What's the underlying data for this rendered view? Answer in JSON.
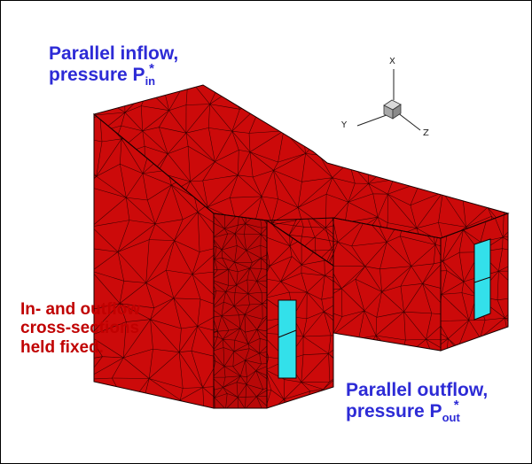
{
  "colors": {
    "mesh_fill": "#cc0a0a",
    "mesh_fill_dark": "#b80808",
    "mesh_line": "#3a0000",
    "port_fill": "#33e0ea",
    "label_blue": "#2d2bd6",
    "label_red": "#c00000"
  },
  "annotations": {
    "inflow": {
      "line1": "Parallel inflow,",
      "line2_prefix": "pressure P",
      "superscript": "*",
      "subscript": "in"
    },
    "outflow": {
      "line1": "Parallel outflow,",
      "line2_prefix": "pressure P",
      "superscript": "*",
      "subscript": "out"
    },
    "fixed": {
      "line1": "In- and outflow",
      "line2": "cross-sections",
      "line3": "held fixed."
    }
  },
  "axis_triad": {
    "x_label": "X",
    "y_label": "Y",
    "z_label": "Z"
  }
}
